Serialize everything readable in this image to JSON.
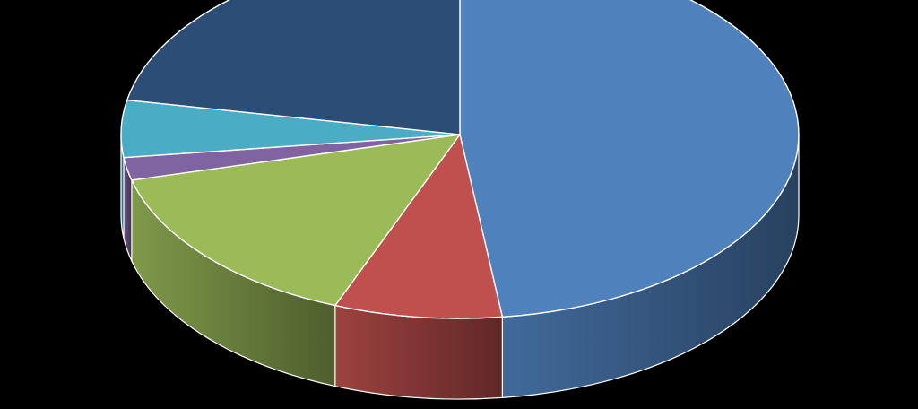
{
  "chart_data": {
    "type": "pie",
    "style": "3d",
    "title": "",
    "legend": "none",
    "data_labels": "none",
    "start_angle_deg": 0,
    "direction": "clockwise",
    "slices": [
      {
        "value": 48,
        "color": "#4f81bd"
      },
      {
        "value": 8,
        "color": "#c0504d"
      },
      {
        "value": 15,
        "color": "#9bbb59"
      },
      {
        "value": 2,
        "color": "#8064a2"
      },
      {
        "value": 5,
        "color": "#4bacc6"
      },
      {
        "value": 22,
        "color": "#2c4d75"
      }
    ],
    "background_color": "#000000",
    "edge_color": "#ffffff"
  }
}
